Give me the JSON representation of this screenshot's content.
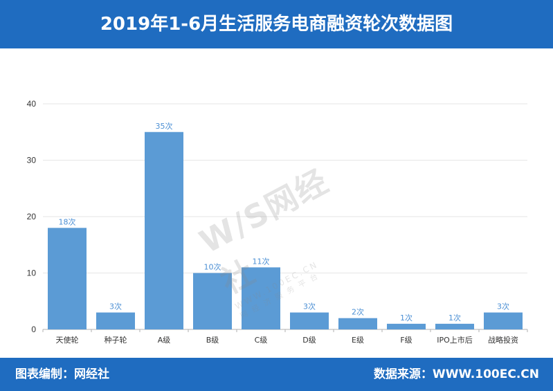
{
  "header": {
    "title": "2019年1-6月生活服务电商融资轮次数据图"
  },
  "footer": {
    "left": "图表编制：网经社",
    "right": "数据来源：WWW.100EC.CN"
  },
  "watermark": {
    "logo": "W/S网经社",
    "url": "WWW.100EC.CN",
    "tag": "网经济服务平台"
  },
  "colors": {
    "header": "#1f6cc0",
    "bar": "#5b9bd5",
    "value_label": "#4b8fd4"
  },
  "chart_data": {
    "type": "bar",
    "categories": [
      "天使轮",
      "种子轮",
      "A级",
      "B级",
      "C级",
      "D级",
      "E级",
      "F级",
      "IPO上市后",
      "战略投资"
    ],
    "values": [
      18,
      3,
      35,
      10,
      11,
      3,
      2,
      1,
      1,
      3
    ],
    "value_labels": [
      "18次",
      "3次",
      "35次",
      "10次",
      "11次",
      "3次",
      "2次",
      "1次",
      "1次",
      "3次"
    ],
    "ylim": [
      0,
      40
    ],
    "yticks": [
      0,
      10,
      20,
      30,
      40
    ],
    "grid": true,
    "legend": "none"
  }
}
